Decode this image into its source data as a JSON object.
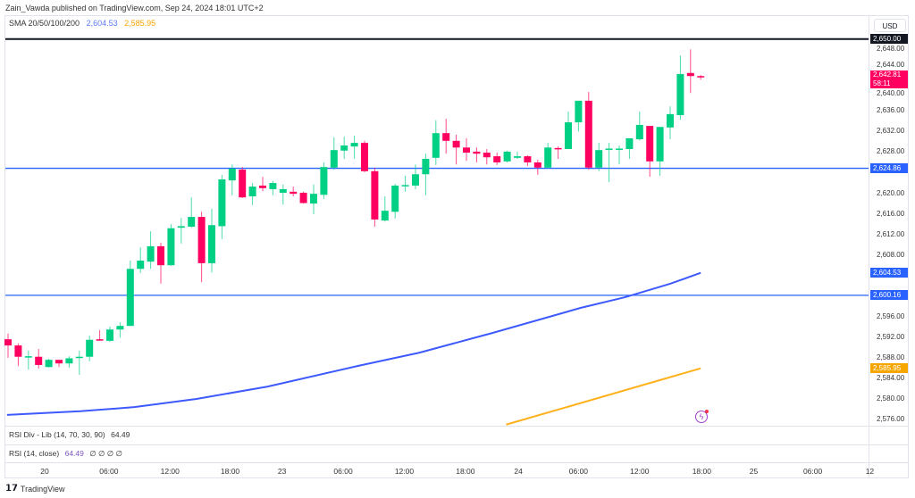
{
  "header": {
    "published": "Zain_Vawda published on TradingView.com, Sep 24, 2024 18:01 UTC+2"
  },
  "legend": {
    "sma_label": "SMA 20/50/100/200",
    "sma_value_1": "2,604.53",
    "sma_value_2": "2,585.95"
  },
  "price_scale": {
    "currency": "USD",
    "ticks": [
      "2,648.00",
      "2,644.00",
      "2,640.00",
      "2,636.00",
      "2,632.00",
      "2,628.00",
      "2,620.00",
      "2,616.00",
      "2,612.00",
      "2,608.00",
      "2,596.00",
      "2,592.00",
      "2,588.00",
      "2,584.00",
      "2,580.00",
      "2,576.00"
    ],
    "tags": [
      {
        "text": "2,650.00",
        "price": 2650,
        "color": "#131722"
      },
      {
        "text": "2,624.86",
        "price": 2624.86,
        "color": "#2962ff"
      },
      {
        "text": "2,604.53",
        "price": 2604.53,
        "color": "#2962ff"
      },
      {
        "text": "2,600.16",
        "price": 2600.16,
        "color": "#2962ff"
      },
      {
        "text": "2,585.95",
        "price": 2585.95,
        "color": "#f7a600"
      }
    ],
    "last_price": "2,642.81",
    "countdown": "58:11"
  },
  "panels": {
    "rsi_div": "RSI Div - Lib (14, 70, 30, 90)",
    "rsi_div_value": "64.49",
    "rsi": "RSI (14, close)",
    "rsi_value": "64.49",
    "rsi_extra": "∅ ∅ ∅ ∅"
  },
  "footer": {
    "brand": "TradingView"
  },
  "colors": {
    "up": "#089981",
    "up_fill": "#00d084",
    "down": "#ff0060",
    "sma_blue": "#3d5afe",
    "sma_orange": "#ffb11c",
    "hline": "#2962ff"
  },
  "chart_data": {
    "type": "candlestick",
    "title": "",
    "xlabel": "",
    "ylabel": "USD",
    "ylim": [
      2576,
      2650
    ],
    "x_ticks": [
      {
        "label": "20",
        "at": 4.6
      },
      {
        "label": "06:00",
        "at": 10.9
      },
      {
        "label": "12:00",
        "at": 16.9
      },
      {
        "label": "18:00",
        "at": 22.8
      },
      {
        "label": "23",
        "at": 27.9
      },
      {
        "label": "06:00",
        "at": 33.9
      },
      {
        "label": "12:00",
        "at": 39.9
      },
      {
        "label": "18:00",
        "at": 45.9
      },
      {
        "label": "24",
        "at": 51.1
      },
      {
        "label": "06:00",
        "at": 57.0
      },
      {
        "label": "12:00",
        "at": 63.0
      },
      {
        "label": "18:00",
        "at": 69.1
      },
      {
        "label": "25",
        "at": 74.2
      },
      {
        "label": "06:00",
        "at": 80.0
      },
      {
        "label": "12",
        "at": 85.6
      }
    ],
    "ohlc": [
      [
        2591.6,
        2592.7,
        2588.0,
        2590.4
      ],
      [
        2590.4,
        2590.8,
        2586.4,
        2588.2
      ],
      [
        2588.2,
        2589.4,
        2585.7,
        2588.3
      ],
      [
        2588.2,
        2589.7,
        2585.9,
        2586.6
      ],
      [
        2586.2,
        2587.8,
        2586.1,
        2587.6
      ],
      [
        2587.6,
        2587.6,
        2586.2,
        2586.9
      ],
      [
        2586.9,
        2588.3,
        2586.1,
        2587.9
      ],
      [
        2588.1,
        2589.4,
        2584.7,
        2588.2
      ],
      [
        2588.2,
        2592.3,
        2587.3,
        2591.5
      ],
      [
        2591.6,
        2593.4,
        2591.3,
        2591.4
      ],
      [
        2591.3,
        2594.1,
        2591.1,
        2593.5
      ],
      [
        2593.5,
        2594.9,
        2591.9,
        2594.2
      ],
      [
        2594.2,
        2606.9,
        2594.2,
        2605.3
      ],
      [
        2605.3,
        2609.5,
        2604.5,
        2606.9
      ],
      [
        2606.7,
        2612.6,
        2605.3,
        2609.7
      ],
      [
        2609.7,
        2610.4,
        2602.4,
        2606.0
      ],
      [
        2606.0,
        2614.0,
        2605.9,
        2613.2
      ],
      [
        2613.3,
        2615.2,
        2610.2,
        2613.6
      ],
      [
        2613.5,
        2619.2,
        2613.3,
        2615.4
      ],
      [
        2615.4,
        2616.4,
        2602.7,
        2606.4
      ],
      [
        2606.4,
        2617.0,
        2604.6,
        2613.8
      ],
      [
        2613.6,
        2623.6,
        2611.1,
        2622.7
      ],
      [
        2622.5,
        2625.6,
        2619.6,
        2624.8
      ],
      [
        2624.6,
        2625.1,
        2619.1,
        2619.2
      ],
      [
        2619.4,
        2622.0,
        2617.7,
        2621.3
      ],
      [
        2621.5,
        2623.2,
        2620.4,
        2621.0
      ],
      [
        2620.8,
        2622.4,
        2619.6,
        2622.0
      ],
      [
        2620.1,
        2621.7,
        2617.8,
        2620.8
      ],
      [
        2620.3,
        2621.3,
        2619.4,
        2619.9
      ],
      [
        2620.1,
        2620.3,
        2618.0,
        2618.1
      ],
      [
        2618.0,
        2621.7,
        2615.9,
        2619.9
      ],
      [
        2619.7,
        2626.0,
        2618.9,
        2625.1
      ],
      [
        2625.0,
        2630.9,
        2624.6,
        2628.4
      ],
      [
        2628.3,
        2631.0,
        2626.7,
        2629.3
      ],
      [
        2629.1,
        2631.2,
        2626.7,
        2629.8
      ],
      [
        2629.8,
        2630.2,
        2624.1,
        2624.3
      ],
      [
        2624.3,
        2625.0,
        2613.5,
        2614.9
      ],
      [
        2614.7,
        2619.4,
        2614.5,
        2616.6
      ],
      [
        2616.4,
        2621.8,
        2615.1,
        2621.5
      ],
      [
        2621.5,
        2623.4,
        2620.3,
        2621.6
      ],
      [
        2621.5,
        2625.6,
        2620.8,
        2623.7
      ],
      [
        2623.7,
        2627.7,
        2619.6,
        2626.7
      ],
      [
        2626.9,
        2634.2,
        2625.5,
        2631.7
      ],
      [
        2631.7,
        2634.5,
        2627.7,
        2630.2
      ],
      [
        2630.2,
        2631.4,
        2625.6,
        2628.9
      ],
      [
        2628.9,
        2630.7,
        2626.3,
        2627.9
      ],
      [
        2628.1,
        2628.9,
        2626.0,
        2627.7
      ],
      [
        2627.9,
        2628.6,
        2625.6,
        2627.0
      ],
      [
        2627.2,
        2627.9,
        2625.5,
        2626.0
      ],
      [
        2626.2,
        2628.3,
        2626.0,
        2628.1
      ],
      [
        2626.9,
        2628.1,
        2626.7,
        2627.2
      ],
      [
        2627.2,
        2627.4,
        2625.3,
        2626.0
      ],
      [
        2626.0,
        2626.5,
        2623.6,
        2625.0
      ],
      [
        2625.0,
        2629.8,
        2624.8,
        2628.9
      ],
      [
        2628.8,
        2629.1,
        2626.7,
        2628.6
      ],
      [
        2628.6,
        2635.9,
        2628.6,
        2633.8
      ],
      [
        2633.8,
        2638.0,
        2632.0,
        2638.0
      ],
      [
        2638.0,
        2639.7,
        2624.6,
        2625.0
      ],
      [
        2625.0,
        2629.8,
        2624.3,
        2628.4
      ],
      [
        2628.6,
        2629.8,
        2622.2,
        2628.7
      ],
      [
        2628.6,
        2629.3,
        2625.6,
        2628.7
      ],
      [
        2628.6,
        2630.7,
        2626.7,
        2630.7
      ],
      [
        2630.5,
        2635.9,
        2630.3,
        2633.3
      ],
      [
        2633.1,
        2633.1,
        2623.2,
        2626.2
      ],
      [
        2626.2,
        2632.9,
        2623.4,
        2632.9
      ],
      [
        2632.8,
        2636.9,
        2630.5,
        2635.4
      ],
      [
        2635.2,
        2646.8,
        2634.3,
        2643.2
      ],
      [
        2643.4,
        2648.0,
        2639.5,
        2642.8
      ],
      [
        2642.8,
        2643.0,
        2642.1,
        2642.7
      ]
    ],
    "series": [
      {
        "name": "SMA blue",
        "points": [
          [
            0.9,
            2576.9
          ],
          [
            8.1,
            2577.6
          ],
          [
            13.4,
            2578.4
          ],
          [
            19.5,
            2580.0
          ],
          [
            26.5,
            2582.4
          ],
          [
            35.3,
            2586.4
          ],
          [
            41.4,
            2589.0
          ],
          [
            48.5,
            2592.8
          ],
          [
            57.2,
            2597.7
          ],
          [
            61.6,
            2599.8
          ],
          [
            66.0,
            2602.4
          ],
          [
            69,
            2604.53
          ]
        ]
      },
      {
        "name": "SMA orange",
        "points": [
          [
            49.9,
            2575.0
          ],
          [
            69,
            2585.95
          ]
        ]
      }
    ],
    "hlines": [
      {
        "price": 2650,
        "color": "#131722"
      },
      {
        "price": 2624.86,
        "color": "#2962ff"
      },
      {
        "price": 2600.16,
        "color": "#2962ff"
      }
    ]
  }
}
